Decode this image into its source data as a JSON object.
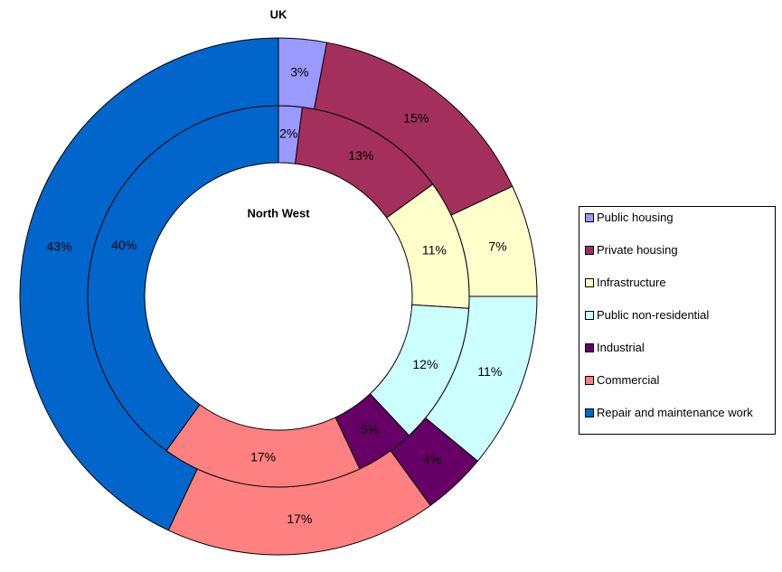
{
  "chart_data": {
    "type": "doughnut",
    "categories": [
      "Public housing",
      "Private housing",
      "Infrastructure",
      "Public non-residential",
      "Industrial",
      "Commercial",
      "Repair and maintenance work"
    ],
    "colors": [
      "#9999ff",
      "#a3305c",
      "#ffffcc",
      "#ccffff",
      "#660066",
      "#ff8080",
      "#0066cc"
    ],
    "series": [
      {
        "name": "UK",
        "values": [
          3,
          15,
          7,
          11,
          4,
          17,
          43
        ],
        "value_labels": [
          "3%",
          "15%",
          "7%",
          "11%",
          "4%",
          "17%",
          "43%"
        ]
      },
      {
        "name": "North West",
        "values": [
          2,
          13,
          11,
          12,
          5,
          17,
          40
        ],
        "value_labels": [
          "2%",
          "13%",
          "11%",
          "12%",
          "5%",
          "17%",
          "40%"
        ]
      }
    ]
  }
}
